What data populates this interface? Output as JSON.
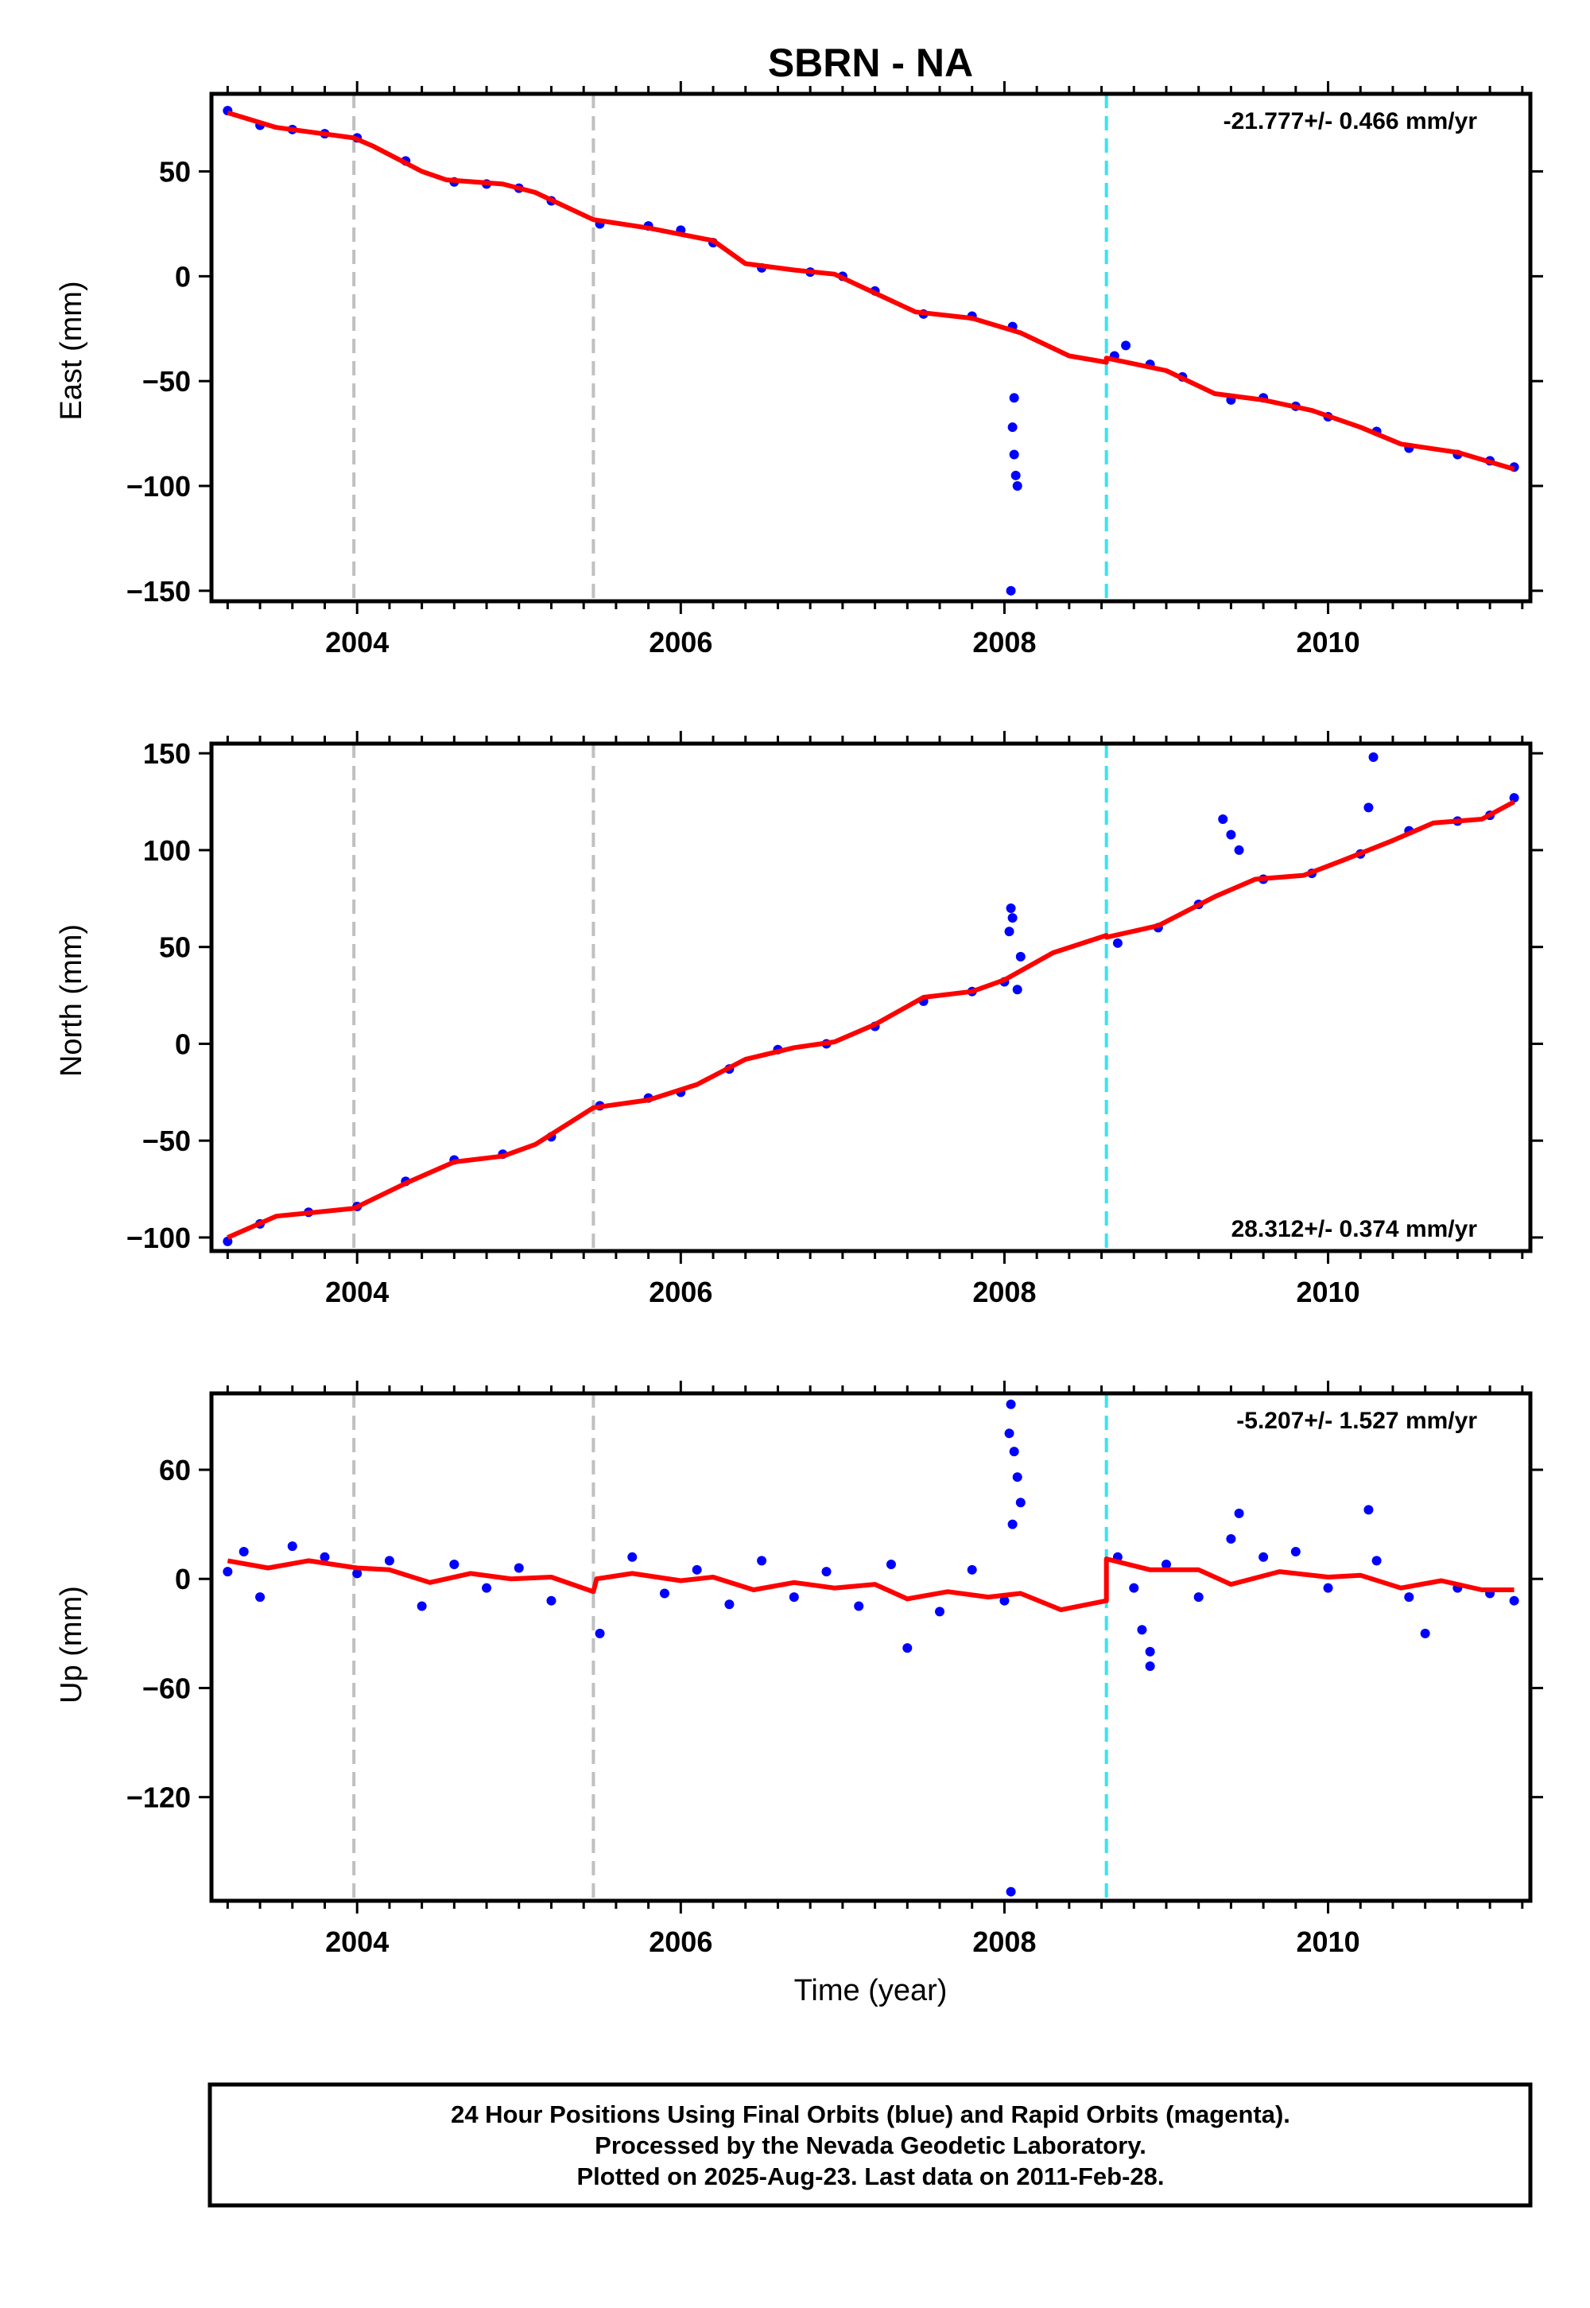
{
  "title": "SBRN - NA",
  "x_axis_label": "Time (year)",
  "footer": {
    "lines": [
      "24 Hour Positions Using Final Orbits (blue) and Rapid Orbits (magenta).",
      "Processed by the Nevada Geodetic Laboratory.",
      "Plotted on 2025-Aug-23. Last data on 2011-Feb-28."
    ]
  },
  "colors": {
    "data_points": "#0000ff",
    "model_line": "#ff0000",
    "equipment_change": "#c0c0c0",
    "data_gap_marker": "#33e6f0",
    "frame": "#000000"
  },
  "chart_data": [
    {
      "type": "scatter",
      "component": "East",
      "ylabel": "East (mm)",
      "xlabel": "",
      "xlim": [
        2003.1,
        2011.25
      ],
      "ylim": [
        -155,
        87
      ],
      "x_ticks": [
        2004,
        2006,
        2008,
        2010
      ],
      "y_ticks": [
        50,
        0,
        -50,
        -100,
        -150
      ],
      "rate_annotation": "-21.777+/- 0.466 mm/yr",
      "rate_position": "top-right",
      "equipment_changes": [
        2003.98,
        2005.46
      ],
      "gap_marker": 2008.63,
      "model": [
        [
          2003.2,
          78
        ],
        [
          2003.5,
          71
        ],
        [
          2003.98,
          66
        ],
        [
          2004.1,
          62
        ],
        [
          2004.4,
          50
        ],
        [
          2004.55,
          46
        ],
        [
          2004.9,
          44
        ],
        [
          2005.1,
          40
        ],
        [
          2005.46,
          27
        ],
        [
          2005.8,
          23
        ],
        [
          2006.2,
          17
        ],
        [
          2006.4,
          6
        ],
        [
          2006.7,
          3
        ],
        [
          2006.95,
          1
        ],
        [
          2007.2,
          -8
        ],
        [
          2007.45,
          -17
        ],
        [
          2007.8,
          -20
        ],
        [
          2008.1,
          -27
        ],
        [
          2008.4,
          -38
        ],
        [
          2008.63,
          -41
        ],
        [
          2008.63,
          -39
        ],
        [
          2009.0,
          -45
        ],
        [
          2009.3,
          -56
        ],
        [
          2009.6,
          -59
        ],
        [
          2009.9,
          -64
        ],
        [
          2010.2,
          -72
        ],
        [
          2010.45,
          -80
        ],
        [
          2010.8,
          -84
        ],
        [
          2011.15,
          -92
        ]
      ],
      "points": [
        [
          2003.2,
          79
        ],
        [
          2003.4,
          72
        ],
        [
          2003.6,
          70
        ],
        [
          2003.8,
          68
        ],
        [
          2004.0,
          66
        ],
        [
          2004.3,
          55
        ],
        [
          2004.6,
          45
        ],
        [
          2004.8,
          44
        ],
        [
          2005.0,
          42
        ],
        [
          2005.2,
          36
        ],
        [
          2005.5,
          25
        ],
        [
          2005.8,
          24
        ],
        [
          2006.0,
          22
        ],
        [
          2006.2,
          16
        ],
        [
          2006.5,
          4
        ],
        [
          2006.8,
          2
        ],
        [
          2007.0,
          0
        ],
        [
          2007.2,
          -7
        ],
        [
          2007.5,
          -18
        ],
        [
          2007.8,
          -19
        ],
        [
          2008.05,
          -24
        ],
        [
          2008.06,
          -58
        ],
        [
          2008.05,
          -72
        ],
        [
          2008.06,
          -85
        ],
        [
          2008.07,
          -95
        ],
        [
          2008.08,
          -100
        ],
        [
          2008.04,
          -150
        ],
        [
          2008.68,
          -38
        ],
        [
          2008.75,
          -33
        ],
        [
          2008.9,
          -42
        ],
        [
          2009.1,
          -48
        ],
        [
          2009.4,
          -59
        ],
        [
          2009.6,
          -58
        ],
        [
          2009.8,
          -62
        ],
        [
          2010.0,
          -67
        ],
        [
          2010.3,
          -74
        ],
        [
          2010.5,
          -82
        ],
        [
          2010.8,
          -85
        ],
        [
          2011.0,
          -88
        ],
        [
          2011.15,
          -91
        ]
      ]
    },
    {
      "type": "scatter",
      "component": "North",
      "ylabel": "North (mm)",
      "xlabel": "",
      "xlim": [
        2003.1,
        2011.25
      ],
      "ylim": [
        -107,
        155
      ],
      "x_ticks": [
        2004,
        2006,
        2008,
        2010
      ],
      "y_ticks": [
        150,
        100,
        50,
        0,
        -50,
        -100
      ],
      "rate_annotation": "28.312+/- 0.374 mm/yr",
      "rate_position": "bottom-right",
      "equipment_changes": [
        2003.98,
        2005.46
      ],
      "gap_marker": 2008.63,
      "model": [
        [
          2003.2,
          -100
        ],
        [
          2003.5,
          -89
        ],
        [
          2003.98,
          -85
        ],
        [
          2004.3,
          -72
        ],
        [
          2004.6,
          -61
        ],
        [
          2004.9,
          -58
        ],
        [
          2005.1,
          -52
        ],
        [
          2005.46,
          -33
        ],
        [
          2005.8,
          -29
        ],
        [
          2006.1,
          -21
        ],
        [
          2006.4,
          -8
        ],
        [
          2006.7,
          -2
        ],
        [
          2006.95,
          1
        ],
        [
          2007.2,
          10
        ],
        [
          2007.5,
          24
        ],
        [
          2007.8,
          27
        ],
        [
          2008.0,
          33
        ],
        [
          2008.3,
          47
        ],
        [
          2008.63,
          56
        ],
        [
          2008.63,
          55
        ],
        [
          2008.95,
          61
        ],
        [
          2009.3,
          76
        ],
        [
          2009.55,
          85
        ],
        [
          2009.85,
          87
        ],
        [
          2010.1,
          95
        ],
        [
          2010.4,
          105
        ],
        [
          2010.65,
          114
        ],
        [
          2010.95,
          116
        ],
        [
          2011.15,
          125
        ]
      ],
      "points": [
        [
          2003.2,
          -102
        ],
        [
          2003.4,
          -93
        ],
        [
          2003.7,
          -87
        ],
        [
          2004.0,
          -84
        ],
        [
          2004.3,
          -71
        ],
        [
          2004.6,
          -60
        ],
        [
          2004.9,
          -57
        ],
        [
          2005.2,
          -48
        ],
        [
          2005.5,
          -32
        ],
        [
          2005.8,
          -28
        ],
        [
          2006.0,
          -25
        ],
        [
          2006.3,
          -13
        ],
        [
          2006.6,
          -3
        ],
        [
          2006.9,
          0
        ],
        [
          2007.2,
          9
        ],
        [
          2007.5,
          22
        ],
        [
          2007.8,
          27
        ],
        [
          2008.0,
          32
        ],
        [
          2008.03,
          58
        ],
        [
          2008.04,
          70
        ],
        [
          2008.05,
          65
        ],
        [
          2008.1,
          45
        ],
        [
          2008.08,
          28
        ],
        [
          2008.7,
          52
        ],
        [
          2008.95,
          60
        ],
        [
          2009.2,
          72
        ],
        [
          2009.35,
          116
        ],
        [
          2009.4,
          108
        ],
        [
          2009.45,
          100
        ],
        [
          2009.6,
          85
        ],
        [
          2009.9,
          88
        ],
        [
          2010.2,
          98
        ],
        [
          2010.25,
          122
        ],
        [
          2010.28,
          148
        ],
        [
          2010.5,
          110
        ],
        [
          2010.8,
          115
        ],
        [
          2011.0,
          118
        ],
        [
          2011.15,
          127
        ]
      ]
    },
    {
      "type": "scatter",
      "component": "Up",
      "ylabel": "Up (mm)",
      "xlabel": "Time (year)",
      "xlim": [
        2003.1,
        2011.25
      ],
      "ylim": [
        -177,
        102
      ],
      "x_ticks": [
        2004,
        2006,
        2008,
        2010
      ],
      "y_ticks": [
        60,
        0,
        -60,
        -120
      ],
      "rate_annotation": "-5.207+/- 1.527 mm/yr",
      "rate_position": "top-right",
      "equipment_changes": [
        2003.98,
        2005.46
      ],
      "gap_marker": 2008.63,
      "model": [
        [
          2003.2,
          10
        ],
        [
          2003.45,
          6
        ],
        [
          2003.7,
          10
        ],
        [
          2004.0,
          6
        ],
        [
          2004.2,
          5
        ],
        [
          2004.45,
          -2
        ],
        [
          2004.7,
          3
        ],
        [
          2004.95,
          0
        ],
        [
          2005.2,
          1
        ],
        [
          2005.46,
          -7
        ],
        [
          2005.48,
          0
        ],
        [
          2005.7,
          3
        ],
        [
          2006.0,
          -1
        ],
        [
          2006.2,
          1
        ],
        [
          2006.45,
          -6
        ],
        [
          2006.7,
          -2
        ],
        [
          2006.95,
          -5
        ],
        [
          2007.2,
          -3
        ],
        [
          2007.4,
          -11
        ],
        [
          2007.65,
          -7
        ],
        [
          2007.9,
          -10
        ],
        [
          2008.1,
          -8
        ],
        [
          2008.35,
          -17
        ],
        [
          2008.63,
          -12
        ],
        [
          2008.63,
          11
        ],
        [
          2008.9,
          5
        ],
        [
          2009.2,
          5
        ],
        [
          2009.4,
          -3
        ],
        [
          2009.7,
          4
        ],
        [
          2010.0,
          1
        ],
        [
          2010.2,
          2
        ],
        [
          2010.45,
          -5
        ],
        [
          2010.7,
          -1
        ],
        [
          2010.95,
          -6
        ],
        [
          2011.15,
          -6
        ]
      ],
      "points": [
        [
          2003.2,
          4
        ],
        [
          2003.3,
          15
        ],
        [
          2003.4,
          -10
        ],
        [
          2003.6,
          18
        ],
        [
          2003.8,
          12
        ],
        [
          2004.0,
          3
        ],
        [
          2004.2,
          10
        ],
        [
          2004.4,
          -15
        ],
        [
          2004.6,
          8
        ],
        [
          2004.8,
          -5
        ],
        [
          2005.0,
          6
        ],
        [
          2005.2,
          -12
        ],
        [
          2005.5,
          -30
        ],
        [
          2005.7,
          12
        ],
        [
          2005.9,
          -8
        ],
        [
          2006.1,
          5
        ],
        [
          2006.3,
          -14
        ],
        [
          2006.5,
          10
        ],
        [
          2006.7,
          -10
        ],
        [
          2006.9,
          4
        ],
        [
          2007.1,
          -15
        ],
        [
          2007.3,
          8
        ],
        [
          2007.4,
          -38
        ],
        [
          2007.6,
          -18
        ],
        [
          2007.8,
          5
        ],
        [
          2008.0,
          -12
        ],
        [
          2008.03,
          80
        ],
        [
          2008.04,
          96
        ],
        [
          2008.06,
          70
        ],
        [
          2008.08,
          56
        ],
        [
          2008.1,
          42
        ],
        [
          2008.05,
          30
        ],
        [
          2008.04,
          -172
        ],
        [
          2008.7,
          12
        ],
        [
          2008.8,
          -5
        ],
        [
          2008.85,
          -28
        ],
        [
          2008.9,
          -40
        ],
        [
          2008.9,
          -48
        ],
        [
          2009.0,
          8
        ],
        [
          2009.2,
          -10
        ],
        [
          2009.4,
          22
        ],
        [
          2009.45,
          36
        ],
        [
          2009.6,
          12
        ],
        [
          2009.8,
          15
        ],
        [
          2010.0,
          -5
        ],
        [
          2010.25,
          38
        ],
        [
          2010.3,
          10
        ],
        [
          2010.5,
          -10
        ],
        [
          2010.6,
          -30
        ],
        [
          2010.8,
          -5
        ],
        [
          2011.0,
          -8
        ],
        [
          2011.15,
          -12
        ]
      ]
    }
  ]
}
